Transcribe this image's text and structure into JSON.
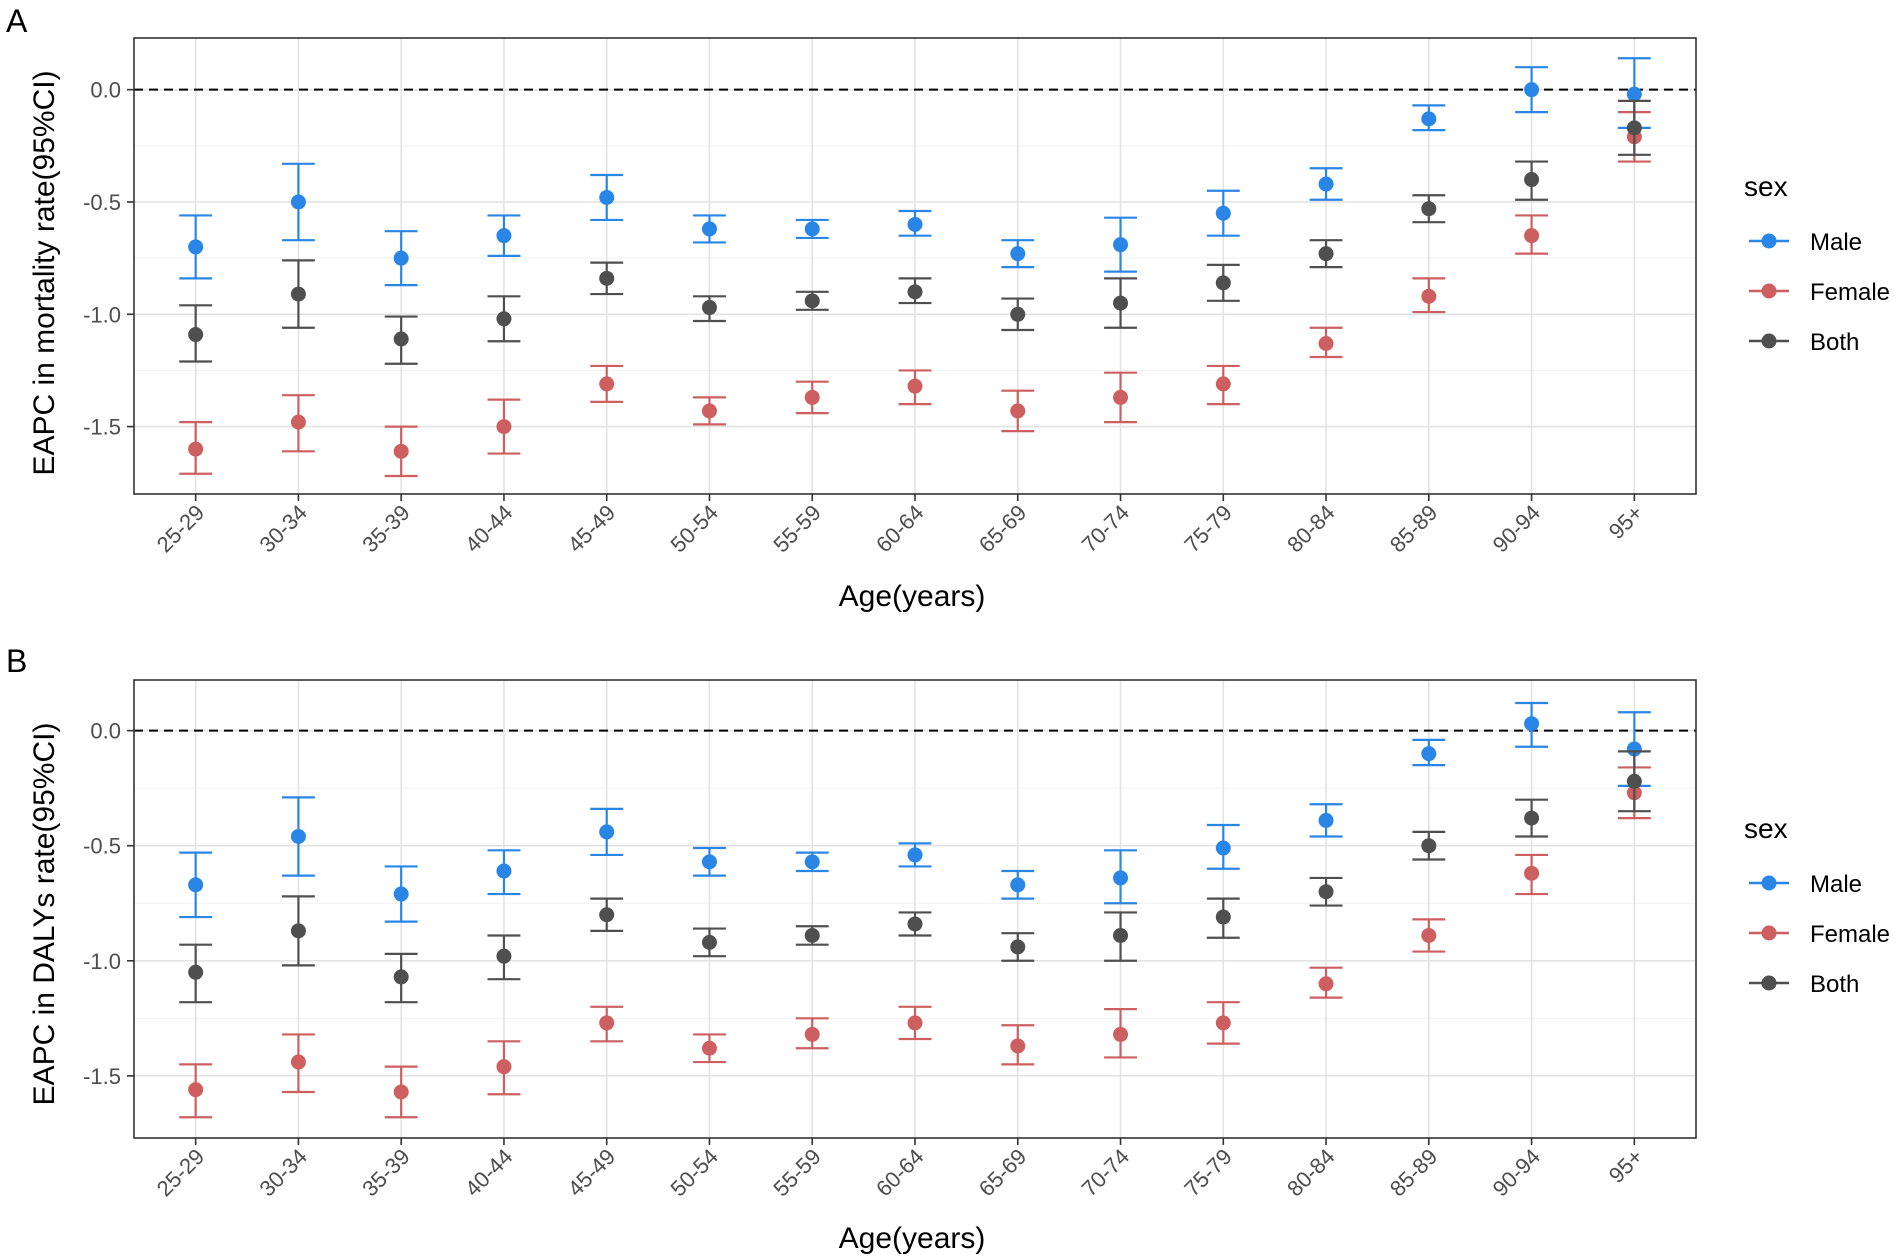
{
  "legend": {
    "title": "sex",
    "entries": [
      {
        "name": "Male",
        "color": "#2a86e6"
      },
      {
        "name": "Female",
        "color": "#cd5f60"
      },
      {
        "name": "Both",
        "color": "#4f4f4f"
      }
    ]
  },
  "chart_data": [
    {
      "panel": "A",
      "type": "scatter",
      "subtype": "point-errorbar",
      "xlabel": "Age(years)",
      "ylabel": "EAPC in mortality rate(95%CI)",
      "ylim": [
        -1.8,
        0.23
      ],
      "yticks": [
        0.0,
        -0.5,
        -1.0,
        -1.5
      ],
      "ytick_labels": [
        "0.0",
        "-0.5",
        "-1.0",
        "-1.5"
      ],
      "reference_line": 0,
      "categories": [
        "25-29",
        "30-34",
        "35-39",
        "40-44",
        "45-49",
        "50-54",
        "55-59",
        "60-64",
        "65-69",
        "70-74",
        "75-79",
        "80-84",
        "85-89",
        "90-94",
        "95+"
      ],
      "series": [
        {
          "name": "Male",
          "values": [
            -0.7,
            -0.5,
            -0.75,
            -0.65,
            -0.48,
            -0.62,
            -0.62,
            -0.6,
            -0.73,
            -0.69,
            -0.55,
            -0.42,
            -0.13,
            0.0,
            -0.02
          ],
          "lower": [
            -0.84,
            -0.67,
            -0.87,
            -0.74,
            -0.58,
            -0.68,
            -0.66,
            -0.65,
            -0.79,
            -0.81,
            -0.65,
            -0.49,
            -0.18,
            -0.1,
            -0.17
          ],
          "upper": [
            -0.56,
            -0.33,
            -0.63,
            -0.56,
            -0.38,
            -0.56,
            -0.58,
            -0.54,
            -0.67,
            -0.57,
            -0.45,
            -0.35,
            -0.07,
            0.1,
            0.14
          ]
        },
        {
          "name": "Female",
          "values": [
            -1.6,
            -1.48,
            -1.61,
            -1.5,
            -1.31,
            -1.43,
            -1.37,
            -1.32,
            -1.43,
            -1.37,
            -1.31,
            -1.13,
            -0.92,
            -0.65,
            -0.21
          ],
          "lower": [
            -1.71,
            -1.61,
            -1.72,
            -1.62,
            -1.39,
            -1.49,
            -1.44,
            -1.4,
            -1.52,
            -1.48,
            -1.4,
            -1.19,
            -0.99,
            -0.73,
            -0.32
          ],
          "upper": [
            -1.48,
            -1.36,
            -1.5,
            -1.38,
            -1.23,
            -1.37,
            -1.3,
            -1.25,
            -1.34,
            -1.26,
            -1.23,
            -1.06,
            -0.84,
            -0.56,
            -0.1
          ]
        },
        {
          "name": "Both",
          "values": [
            -1.09,
            -0.91,
            -1.11,
            -1.02,
            -0.84,
            -0.97,
            -0.94,
            -0.9,
            -1.0,
            -0.95,
            -0.86,
            -0.73,
            -0.53,
            -0.4,
            -0.17
          ],
          "lower": [
            -1.21,
            -1.06,
            -1.22,
            -1.12,
            -0.91,
            -1.03,
            -0.98,
            -0.95,
            -1.07,
            -1.06,
            -0.94,
            -0.79,
            -0.59,
            -0.49,
            -0.29
          ],
          "upper": [
            -0.96,
            -0.76,
            -1.01,
            -0.92,
            -0.77,
            -0.92,
            -0.9,
            -0.84,
            -0.93,
            -0.84,
            -0.78,
            -0.67,
            -0.47,
            -0.32,
            -0.05
          ]
        }
      ]
    },
    {
      "panel": "B",
      "type": "scatter",
      "subtype": "point-errorbar",
      "xlabel": "Age(years)",
      "ylabel": "EAPC in DALYs rate(95%CI)",
      "ylim": [
        -1.77,
        0.22
      ],
      "yticks": [
        0.0,
        -0.5,
        -1.0,
        -1.5
      ],
      "ytick_labels": [
        "0.0",
        "-0.5",
        "-1.0",
        "-1.5"
      ],
      "reference_line": 0,
      "categories": [
        "25-29",
        "30-34",
        "35-39",
        "40-44",
        "45-49",
        "50-54",
        "55-59",
        "60-64",
        "65-69",
        "70-74",
        "75-79",
        "80-84",
        "85-89",
        "90-94",
        "95+"
      ],
      "series": [
        {
          "name": "Male",
          "values": [
            -0.67,
            -0.46,
            -0.71,
            -0.61,
            -0.44,
            -0.57,
            -0.57,
            -0.54,
            -0.67,
            -0.64,
            -0.51,
            -0.39,
            -0.1,
            0.03,
            -0.08
          ],
          "lower": [
            -0.81,
            -0.63,
            -0.83,
            -0.71,
            -0.54,
            -0.63,
            -0.61,
            -0.59,
            -0.73,
            -0.75,
            -0.6,
            -0.46,
            -0.15,
            -0.07,
            -0.24
          ],
          "upper": [
            -0.53,
            -0.29,
            -0.59,
            -0.52,
            -0.34,
            -0.51,
            -0.53,
            -0.49,
            -0.61,
            -0.52,
            -0.41,
            -0.32,
            -0.04,
            0.12,
            0.08
          ]
        },
        {
          "name": "Female",
          "values": [
            -1.56,
            -1.44,
            -1.57,
            -1.46,
            -1.27,
            -1.38,
            -1.32,
            -1.27,
            -1.37,
            -1.32,
            -1.27,
            -1.1,
            -0.89,
            -0.62,
            -0.27
          ],
          "lower": [
            -1.68,
            -1.57,
            -1.68,
            -1.58,
            -1.35,
            -1.44,
            -1.38,
            -1.34,
            -1.45,
            -1.42,
            -1.36,
            -1.16,
            -0.96,
            -0.71,
            -0.38
          ],
          "upper": [
            -1.45,
            -1.32,
            -1.46,
            -1.35,
            -1.2,
            -1.32,
            -1.25,
            -1.2,
            -1.28,
            -1.21,
            -1.18,
            -1.03,
            -0.82,
            -0.54,
            -0.16
          ]
        },
        {
          "name": "Both",
          "values": [
            -1.05,
            -0.87,
            -1.07,
            -0.98,
            -0.8,
            -0.92,
            -0.89,
            -0.84,
            -0.94,
            -0.89,
            -0.81,
            -0.7,
            -0.5,
            -0.38,
            -0.22
          ],
          "lower": [
            -1.18,
            -1.02,
            -1.18,
            -1.08,
            -0.87,
            -0.98,
            -0.93,
            -0.89,
            -1.0,
            -1.0,
            -0.9,
            -0.76,
            -0.56,
            -0.46,
            -0.35
          ],
          "upper": [
            -0.93,
            -0.72,
            -0.97,
            -0.89,
            -0.73,
            -0.86,
            -0.85,
            -0.79,
            -0.88,
            -0.79,
            -0.73,
            -0.64,
            -0.44,
            -0.3,
            -0.09
          ]
        }
      ]
    }
  ]
}
